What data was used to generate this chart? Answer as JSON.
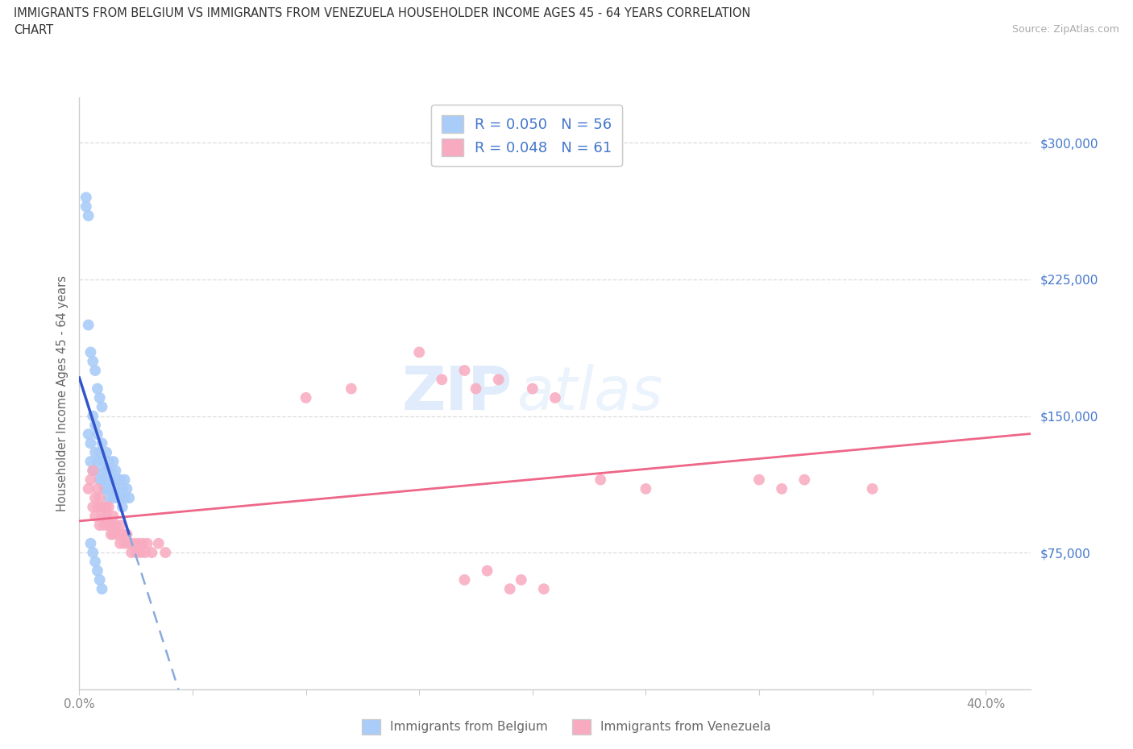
{
  "title_line1": "IMMIGRANTS FROM BELGIUM VS IMMIGRANTS FROM VENEZUELA HOUSEHOLDER INCOME AGES 45 - 64 YEARS CORRELATION",
  "title_line2": "CHART",
  "source_text": "Source: ZipAtlas.com",
  "ylabel": "Householder Income Ages 45 - 64 years",
  "xlim": [
    0.0,
    0.42
  ],
  "ylim": [
    0,
    325000
  ],
  "xtick_positions": [
    0.0,
    0.05,
    0.1,
    0.15,
    0.2,
    0.25,
    0.3,
    0.35,
    0.4
  ],
  "xtick_labels": [
    "0.0%",
    "",
    "",
    "",
    "",
    "",
    "",
    "",
    "40.0%"
  ],
  "ytick_right_positions": [
    75000,
    150000,
    225000,
    300000
  ],
  "ytick_right_labels": [
    "$75,000",
    "$150,000",
    "$225,000",
    "$300,000"
  ],
  "watermark_zip": "ZIP",
  "watermark_atlas": "atlas",
  "belgium_color": "#aaccf8",
  "venezuela_color": "#f8aac0",
  "belgium_line_color": "#3355cc",
  "belgium_dash_color": "#88aadd",
  "venezuela_line_color": "#ee6688",
  "R_belgium": "0.050",
  "N_belgium": "56",
  "R_venezuela": "0.048",
  "N_venezuela": "61",
  "legend_label_belgium": "Immigrants from Belgium",
  "legend_label_venezuela": "Immigrants from Venezuela",
  "grid_color": "#dddddd",
  "background_color": "#ffffff",
  "stat_color": "#4477cc",
  "title_color": "#333333",
  "belgium_x": [
    0.004,
    0.005,
    0.005,
    0.006,
    0.006,
    0.007,
    0.007,
    0.007,
    0.008,
    0.008,
    0.009,
    0.009,
    0.01,
    0.01,
    0.01,
    0.011,
    0.011,
    0.012,
    0.012,
    0.012,
    0.013,
    0.013,
    0.013,
    0.014,
    0.014,
    0.015,
    0.015,
    0.015,
    0.016,
    0.016,
    0.017,
    0.017,
    0.018,
    0.018,
    0.019,
    0.019,
    0.02,
    0.02,
    0.021,
    0.022,
    0.003,
    0.003,
    0.004,
    0.004,
    0.005,
    0.006,
    0.007,
    0.008,
    0.009,
    0.01,
    0.005,
    0.006,
    0.007,
    0.008,
    0.009,
    0.01
  ],
  "belgium_y": [
    140000,
    135000,
    125000,
    150000,
    120000,
    145000,
    130000,
    120000,
    140000,
    125000,
    130000,
    115000,
    135000,
    125000,
    115000,
    120000,
    110000,
    130000,
    120000,
    110000,
    125000,
    115000,
    105000,
    120000,
    110000,
    125000,
    115000,
    105000,
    120000,
    110000,
    115000,
    105000,
    115000,
    105000,
    110000,
    100000,
    115000,
    105000,
    110000,
    105000,
    270000,
    265000,
    260000,
    200000,
    185000,
    180000,
    175000,
    165000,
    160000,
    155000,
    80000,
    75000,
    70000,
    65000,
    60000,
    55000
  ],
  "venezuela_x": [
    0.004,
    0.005,
    0.006,
    0.006,
    0.007,
    0.007,
    0.008,
    0.008,
    0.009,
    0.009,
    0.01,
    0.01,
    0.011,
    0.011,
    0.012,
    0.012,
    0.013,
    0.013,
    0.014,
    0.014,
    0.015,
    0.015,
    0.016,
    0.017,
    0.018,
    0.018,
    0.019,
    0.02,
    0.021,
    0.022,
    0.023,
    0.024,
    0.025,
    0.026,
    0.027,
    0.028,
    0.029,
    0.03,
    0.032,
    0.035,
    0.038,
    0.1,
    0.12,
    0.15,
    0.16,
    0.17,
    0.175,
    0.185,
    0.2,
    0.21,
    0.23,
    0.25,
    0.3,
    0.31,
    0.32,
    0.35,
    0.17,
    0.18,
    0.19,
    0.195,
    0.205
  ],
  "venezuela_y": [
    110000,
    115000,
    100000,
    120000,
    105000,
    95000,
    110000,
    100000,
    105000,
    90000,
    100000,
    95000,
    100000,
    90000,
    100000,
    95000,
    90000,
    100000,
    90000,
    85000,
    95000,
    85000,
    90000,
    85000,
    90000,
    80000,
    85000,
    80000,
    85000,
    80000,
    75000,
    80000,
    75000,
    80000,
    75000,
    80000,
    75000,
    80000,
    75000,
    80000,
    75000,
    160000,
    165000,
    185000,
    170000,
    175000,
    165000,
    170000,
    165000,
    160000,
    115000,
    110000,
    115000,
    110000,
    115000,
    110000,
    60000,
    65000,
    55000,
    60000,
    55000
  ]
}
